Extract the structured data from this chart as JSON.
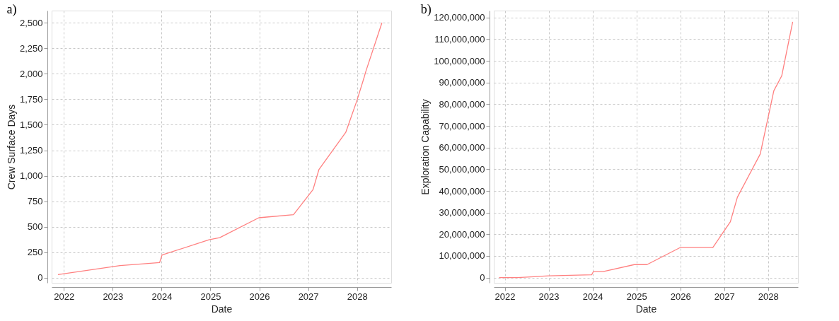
{
  "chart_data": [
    {
      "type": "line",
      "annotations": [
        "a)"
      ],
      "xlabel": "Date",
      "ylabel": "Crew Surface Days",
      "color": "#ff8080",
      "grid": true,
      "x": [
        2021.88,
        2023.0,
        2023.15,
        2023.96,
        2024.01,
        2024.97,
        2025.19,
        2025.99,
        2026.15,
        2026.7,
        2027.1,
        2027.22,
        2027.77,
        2028.0,
        2028.15,
        2028.18,
        2028.51
      ],
      "values": [
        30,
        109,
        119,
        149,
        223,
        372,
        393,
        588,
        595,
        619,
        865,
        1060,
        1426,
        1740,
        1972,
        2023,
        2500
      ],
      "xlim": [
        2021.75,
        2028.7
      ],
      "ylim": [
        -50,
        2620
      ],
      "xticks": [
        2022,
        2023,
        2024,
        2025,
        2026,
        2027,
        2028
      ],
      "yticks": [
        0,
        250,
        500,
        750,
        {
          "value": 1000,
          "label": "1,000"
        },
        {
          "value": 1250,
          "label": "1,250"
        },
        {
          "value": 1500,
          "label": "1,500"
        },
        {
          "value": 1750,
          "label": "1,750"
        },
        {
          "value": 2000,
          "label": "2,000"
        },
        {
          "value": 2250,
          "label": "2,250"
        },
        {
          "value": 2500,
          "label": "2,500"
        }
      ]
    },
    {
      "type": "line",
      "annotations": [
        "b)"
      ],
      "xlabel": "Date",
      "ylabel": "Exploration Capability",
      "color": "#ff8080",
      "grid": true,
      "x": [
        2021.87,
        2022.29,
        2023.0,
        2023.98,
        2024.02,
        2024.24,
        2024.95,
        2025.24,
        2026.0,
        2026.74,
        2027.14,
        2027.3,
        2027.82,
        2028.13,
        2028.31,
        2028.56
      ],
      "values": [
        0,
        0,
        800000,
        1300000,
        2800000,
        2800000,
        6000000,
        6000000,
        13900000,
        13900000,
        25800000,
        37100000,
        57000000,
        86200000,
        93100000,
        118000000
      ],
      "xlim": [
        2021.75,
        2028.68
      ],
      "ylim": [
        -2400000,
        123200000
      ],
      "xticks": [
        2022,
        2023,
        2024,
        2025,
        2026,
        2027,
        2028
      ],
      "yticks": [
        0,
        {
          "value": 10000000,
          "label": "10,000,000"
        },
        {
          "value": 20000000,
          "label": "20,000,000"
        },
        {
          "value": 30000000,
          "label": "30,000,000"
        },
        {
          "value": 40000000,
          "label": "40,000,000"
        },
        {
          "value": 50000000,
          "label": "50,000,000"
        },
        {
          "value": 60000000,
          "label": "60,000,000"
        },
        {
          "value": 70000000,
          "label": "70,000,000"
        },
        {
          "value": 80000000,
          "label": "80,000,000"
        },
        {
          "value": 90000000,
          "label": "90,000,000"
        },
        {
          "value": 100000000,
          "label": "100,000,000"
        },
        {
          "value": 110000000,
          "label": "110,000,000"
        },
        {
          "value": 120000000,
          "label": "120,000,000"
        }
      ]
    }
  ]
}
